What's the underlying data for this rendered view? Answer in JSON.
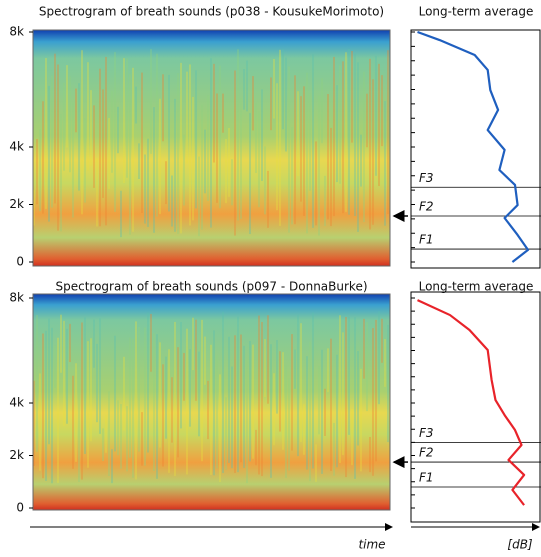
{
  "chart_data": [
    {
      "type": "spectrogram",
      "title": "Spectrogram of breath sounds (p038 - KousukeMorimoto)",
      "ylim": [
        0,
        8000
      ],
      "yticks": [
        0,
        {
          "value": 2000,
          "label": "2k"
        },
        {
          "value": 4000,
          "label": "4k"
        },
        {
          "value": 8000,
          "label": "8k"
        }
      ],
      "long_term": {
        "type": "line",
        "title": "Long-term average",
        "color": "#1f5fbf",
        "xlim": [
          0,
          100
        ],
        "freq": [
          8000,
          7720,
          7200,
          6680,
          5980,
          5290,
          4590,
          3900,
          3200,
          2680,
          1980,
          1530,
          940,
          420,
          0
        ],
        "db": [
          5,
          22,
          49,
          59,
          61,
          67,
          59,
          72,
          68,
          80,
          82,
          72,
          82,
          90,
          78
        ],
        "formants": [
          {
            "label": "F1",
            "value": 450
          },
          {
            "label": "F2",
            "value": 1600
          },
          {
            "label": "F3",
            "value": 2600
          }
        ]
      }
    },
    {
      "type": "spectrogram",
      "title": "Spectrogram of breath sounds (p097 - DonnaBurke)",
      "xlabel": "time",
      "ylim": [
        0,
        8000
      ],
      "yticks": [
        0,
        {
          "value": 2000,
          "label": "2k"
        },
        {
          "value": 4000,
          "label": "4k"
        },
        {
          "value": 8000,
          "label": "8k"
        }
      ],
      "long_term": {
        "type": "line",
        "title": "Long-term average",
        "color": "#e8232a",
        "xlim": [
          0,
          100
        ],
        "xlabel": "[dB]",
        "freq": [
          7920,
          7350,
          6780,
          6020,
          4880,
          4110,
          3540,
          2970,
          2400,
          1830,
          1260,
          690,
          110
        ],
        "db": [
          5,
          30,
          45,
          59,
          62,
          65,
          72,
          80,
          85,
          75,
          87,
          78,
          87
        ],
        "formants": [
          {
            "label": "F1",
            "value": 800
          },
          {
            "label": "F2",
            "value": 1750
          },
          {
            "label": "F3",
            "value": 2500
          }
        ]
      }
    }
  ]
}
